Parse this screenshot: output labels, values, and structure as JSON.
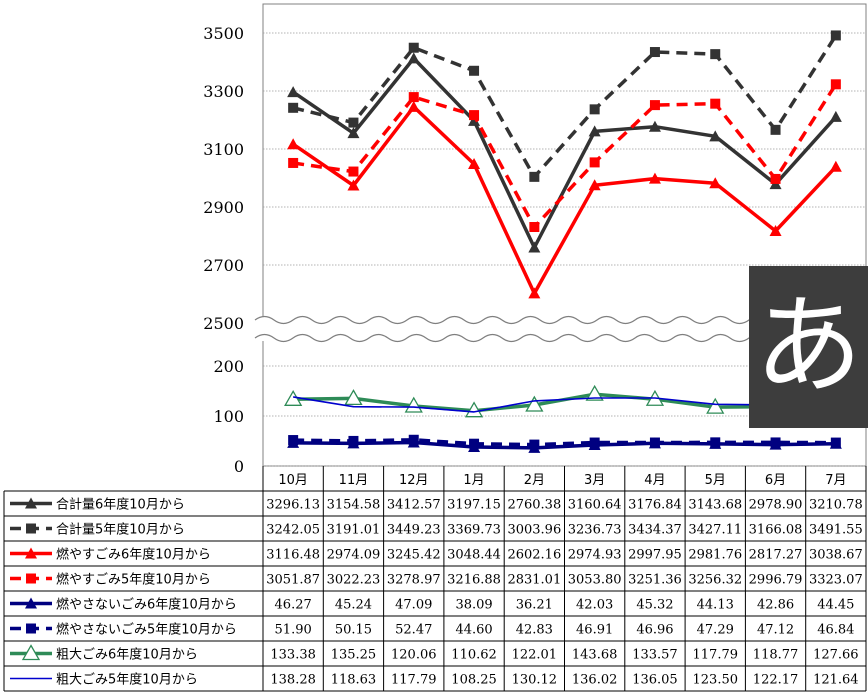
{
  "chart_data": {
    "type": "line",
    "categories": [
      "10月",
      "11月",
      "12月",
      "1月",
      "2月",
      "3月",
      "4月",
      "5月",
      "6月",
      "7月"
    ],
    "y_upper": {
      "ylim": [
        2500,
        3500
      ],
      "ticks": [
        "3500",
        "3300",
        "3100",
        "2900",
        "2700",
        "2500"
      ]
    },
    "y_lower": {
      "ylim": [
        0,
        200
      ],
      "ticks": [
        "200",
        "100",
        "0"
      ]
    },
    "y_break": true,
    "grid": true,
    "legend": "table-below",
    "series": [
      {
        "name": "合計量6年度10月から",
        "color": "#333333",
        "style": "solid",
        "marker": "triangle",
        "panel": "upper",
        "values": [
          3296.13,
          3154.58,
          3412.57,
          3197.15,
          2760.38,
          3160.64,
          3176.84,
          3143.68,
          2978.9,
          3210.78
        ],
        "labels": [
          "3296.13",
          "3154.58",
          "3412.57",
          "3197.15",
          "2760.38",
          "3160.64",
          "3176.84",
          "3143.68",
          "2978.90",
          "3210.78"
        ]
      },
      {
        "name": "合計量5年度10月から",
        "color": "#333333",
        "style": "dashed",
        "marker": "square",
        "panel": "upper",
        "values": [
          3242.05,
          3191.01,
          3449.23,
          3369.73,
          3003.96,
          3236.73,
          3434.37,
          3427.11,
          3166.08,
          3491.55
        ],
        "labels": [
          "3242.05",
          "3191.01",
          "3449.23",
          "3369.73",
          "3003.96",
          "3236.73",
          "3434.37",
          "3427.11",
          "3166.08",
          "3491.55"
        ]
      },
      {
        "name": "燃やすごみ6年度10月から",
        "color": "#ff0000",
        "style": "solid",
        "marker": "triangle",
        "panel": "upper",
        "values": [
          3116.48,
          2974.09,
          3245.42,
          3048.44,
          2602.16,
          2974.93,
          2997.95,
          2981.76,
          2817.27,
          3038.67
        ],
        "labels": [
          "3116.48",
          "2974.09",
          "3245.42",
          "3048.44",
          "2602.16",
          "2974.93",
          "2997.95",
          "2981.76",
          "2817.27",
          "3038.67"
        ]
      },
      {
        "name": "燃やすごみ5年度10月から",
        "color": "#ff0000",
        "style": "dashed",
        "marker": "square",
        "panel": "upper",
        "values": [
          3051.87,
          3022.23,
          3278.97,
          3216.88,
          2831.01,
          3053.8,
          3251.36,
          3256.32,
          2996.79,
          3323.07
        ],
        "labels": [
          "3051.87",
          "3022.23",
          "3278.97",
          "3216.88",
          "2831.01",
          "3053.80",
          "3251.36",
          "3256.32",
          "2996.79",
          "3323.07"
        ]
      },
      {
        "name": "燃やさないごみ6年度10月から",
        "color": "#000080",
        "style": "solid",
        "marker": "triangle",
        "panel": "lower",
        "values": [
          46.27,
          45.24,
          47.09,
          38.09,
          36.21,
          42.03,
          45.32,
          44.13,
          42.86,
          44.45
        ],
        "labels": [
          "46.27",
          "45.24",
          "47.09",
          "38.09",
          "36.21",
          "42.03",
          "45.32",
          "44.13",
          "42.86",
          "44.45"
        ]
      },
      {
        "name": "燃やさないごみ5年度10月から",
        "color": "#000080",
        "style": "dashed",
        "marker": "square",
        "panel": "lower",
        "values": [
          51.9,
          50.15,
          52.47,
          44.6,
          42.83,
          46.91,
          46.96,
          47.29,
          47.12,
          46.84
        ],
        "labels": [
          "51.90",
          "50.15",
          "52.47",
          "44.60",
          "42.83",
          "46.91",
          "46.96",
          "47.29",
          "47.12",
          "46.84"
        ]
      },
      {
        "name": "粗大ごみ6年度10月から",
        "color": "#2e8b57",
        "style": "solid",
        "marker": "open-triangle",
        "panel": "lower",
        "values": [
          133.38,
          135.25,
          120.06,
          110.62,
          122.01,
          143.68,
          133.57,
          117.79,
          118.77,
          127.66
        ],
        "labels": [
          "133.38",
          "135.25",
          "120.06",
          "110.62",
          "122.01",
          "143.68",
          "133.57",
          "117.79",
          "118.77",
          "127.66"
        ]
      },
      {
        "name": "粗大ごみ5年度10月から",
        "color": "#0000cd",
        "style": "thin",
        "marker": "none",
        "panel": "lower",
        "values": [
          138.28,
          118.63,
          117.79,
          108.25,
          130.12,
          136.02,
          136.05,
          123.5,
          122.17,
          121.64
        ],
        "labels": [
          "138.28",
          "118.63",
          "117.79",
          "108.25",
          "130.12",
          "136.02",
          "136.05",
          "123.50",
          "122.17",
          "121.64"
        ]
      }
    ]
  },
  "overlay": {
    "glyph": "あ",
    "color": "#3d3d3d"
  }
}
